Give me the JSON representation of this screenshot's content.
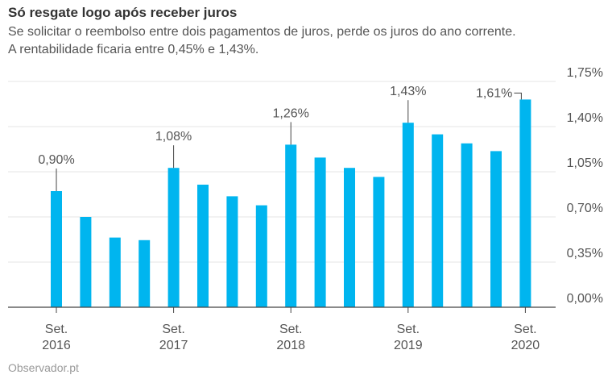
{
  "title": "Só resgate logo após receber juros",
  "subtitle_lines": [
    "Se solicitar o reembolso entre dois pagamentos de juros, perde os juros do ano corrente.",
    "A rentabilidade ficaria entre 0,45% e 1,43%."
  ],
  "source": "Observador.pt",
  "colors": {
    "bar": "#00b5ef",
    "grid": "#e6e6e6",
    "axis": "#444444",
    "text": "#555555"
  },
  "chart_data": {
    "type": "bar",
    "values": [
      0.9,
      0.7,
      0.54,
      0.52,
      1.08,
      0.95,
      0.86,
      0.79,
      1.26,
      1.16,
      1.08,
      1.01,
      1.43,
      1.34,
      1.27,
      1.21,
      1.61
    ],
    "ylim": [
      0,
      1.75
    ],
    "yticks": [
      "0,00%",
      "0,35%",
      "0,70%",
      "1,05%",
      "1,40%",
      "1,75%"
    ],
    "ytick_values": [
      0,
      0.35,
      0.7,
      1.05,
      1.4,
      1.75
    ],
    "y_axis_position": "right",
    "grid": true,
    "xticks": [
      {
        "index": 0,
        "line1": "Set.",
        "line2": "2016"
      },
      {
        "index": 4,
        "line1": "Set.",
        "line2": "2017"
      },
      {
        "index": 8,
        "line1": "Set.",
        "line2": "2018"
      },
      {
        "index": 12,
        "line1": "Set.",
        "line2": "2019"
      },
      {
        "index": 16,
        "line1": "Set.",
        "line2": "2020"
      }
    ],
    "annotations": [
      {
        "index": 0,
        "label": "0,90%"
      },
      {
        "index": 4,
        "label": "1,08%"
      },
      {
        "index": 8,
        "label": "1,26%"
      },
      {
        "index": 12,
        "label": "1,43%"
      },
      {
        "index": 16,
        "label": "1,61%"
      }
    ]
  }
}
